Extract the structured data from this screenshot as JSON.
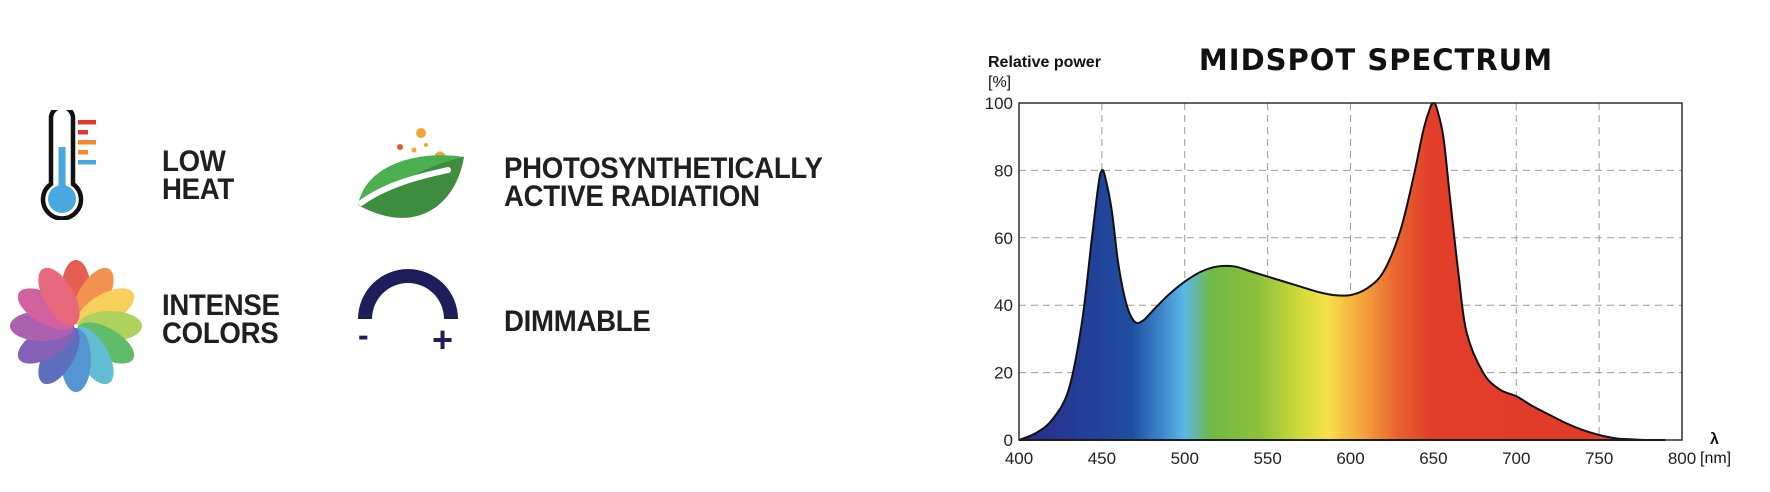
{
  "features": [
    {
      "lines": [
        "LOW",
        "HEAT"
      ],
      "icon": "thermometer-icon"
    },
    {
      "lines": [
        "PHOTOSYNTHETICALLY",
        "ACTIVE RADIATION"
      ],
      "icon": "leaf-icon"
    },
    {
      "lines": [
        "INTENSE",
        "COLORS"
      ],
      "icon": "color-flower-icon"
    },
    {
      "lines": [
        "DIMMABLE"
      ],
      "icon": "dimmer-icon",
      "minus": "-",
      "plus": "+"
    }
  ],
  "chart_data": {
    "type": "area",
    "title": "MIDSPOT SPECTRUM",
    "ylabel_line1": "Relative power",
    "ylabel_line2": "[%]",
    "xlabel_symbol": "λ",
    "xlabel_unit": "[nm]",
    "xlim": [
      400,
      800
    ],
    "ylim": [
      0,
      100
    ],
    "x_ticks": [
      400,
      450,
      500,
      550,
      600,
      650,
      700,
      750,
      800
    ],
    "y_ticks": [
      0,
      20,
      40,
      60,
      80,
      100
    ],
    "grid": true,
    "fill": "visible light spectrum gradient",
    "series": [
      {
        "x": [
          400,
          410,
          420,
          430,
          438,
          444,
          448,
          450,
          452,
          456,
          460,
          465,
          470,
          475,
          480,
          490,
          500,
          510,
          520,
          530,
          540,
          550,
          560,
          570,
          580,
          590,
          600,
          610,
          620,
          630,
          638,
          644,
          648,
          650,
          652,
          656,
          660,
          665,
          670,
          680,
          690,
          700,
          710,
          720,
          730,
          740,
          750,
          760,
          770,
          780,
          790
        ],
        "y": [
          0,
          2,
          6,
          15,
          35,
          60,
          76,
          80,
          78,
          68,
          52,
          40,
          35,
          35.5,
          38,
          43,
          47,
          50,
          51.5,
          51.5,
          50,
          48.5,
          47,
          45.5,
          44,
          43,
          43,
          45,
          50,
          62,
          78,
          92,
          98.5,
          100,
          98.5,
          90,
          72,
          50,
          32,
          20,
          15,
          13,
          10,
          7.5,
          5,
          3,
          1.5,
          0.5,
          0.2,
          0,
          0
        ]
      }
    ]
  }
}
